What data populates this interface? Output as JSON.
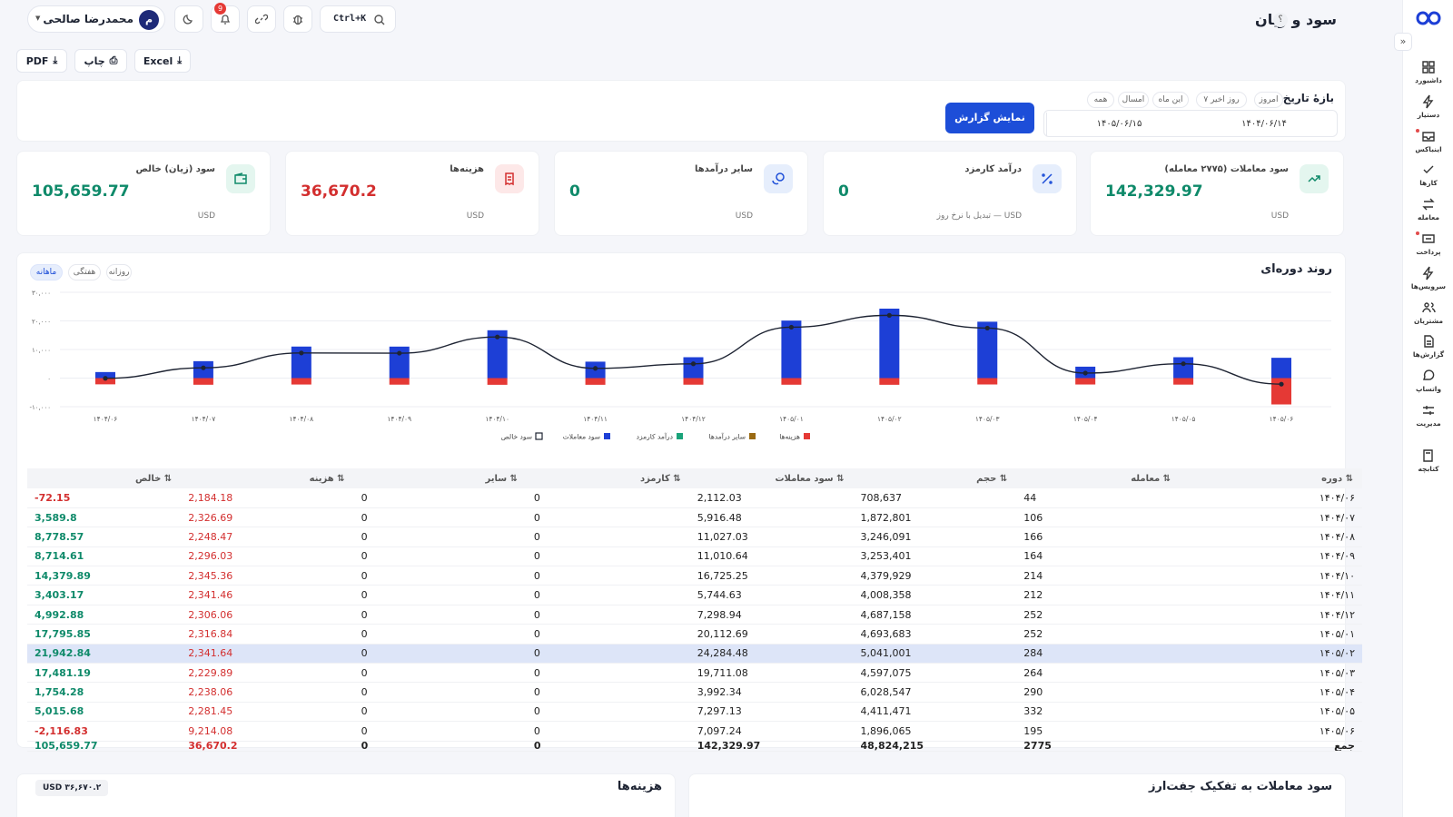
{
  "header": {
    "title": "سود و زیان",
    "help": "؟",
    "search_shortcut": "Ctrl+K",
    "notifications": "9",
    "user_initial": "م",
    "user_name": "محمدرضا صالحی"
  },
  "export": {
    "pdf": "PDF",
    "print": "چاپ",
    "excel": "Excel"
  },
  "filter": {
    "title": "بازهٔ تاریخ",
    "chips": [
      "امروز",
      "۷ روز اخیر",
      "این ماه",
      "امسال",
      "همه"
    ],
    "from": "۱۴۰۴/۰۶/۱۴",
    "to": "۱۴۰۵/۰۶/۱۵",
    "show_button": "نمایش گزارش"
  },
  "kpis": [
    {
      "title": "سود معاملات (۲۷۷۵ معامله)",
      "value": "142,329.97",
      "unit": "USD",
      "color": "#0f8a6a",
      "icon": "trend-icon"
    },
    {
      "title": "درآمد کارمزد",
      "value": "0",
      "unit": "USD — تبدیل با نرخ روز",
      "color": "#0f8a6a",
      "icon": "percent-icon"
    },
    {
      "title": "سایر درآمدها",
      "value": "0",
      "unit": "USD",
      "color": "#0f8a6a",
      "icon": "coins-icon"
    },
    {
      "title": "هزینه‌ها",
      "value": "36,670.2",
      "unit": "USD",
      "color": "#d32f2f",
      "icon": "receipt-icon"
    },
    {
      "title": "سود (زیان) خالص",
      "value": "105,659.77",
      "unit": "USD",
      "color": "#0f8a6a",
      "icon": "wallet-icon"
    }
  ],
  "trend": {
    "title": "روند دوره‌ای",
    "tabs": [
      "ماهانه",
      "هفتگی",
      "روزانه"
    ],
    "active_tab": "ماهانه"
  },
  "chart_data": {
    "type": "bar",
    "categories": [
      "۱۴۰۴/۰۶",
      "۱۴۰۴/۰۷",
      "۱۴۰۴/۰۸",
      "۱۴۰۴/۰۹",
      "۱۴۰۴/۱۰",
      "۱۴۰۴/۱۱",
      "۱۴۰۴/۱۲",
      "۱۴۰۵/۰۱",
      "۱۴۰۵/۰۲",
      "۱۴۰۵/۰۳",
      "۱۴۰۵/۰۴",
      "۱۴۰۵/۰۵",
      "۱۴۰۵/۰۶"
    ],
    "y_ticks": [
      "۳۰,۰۰۰",
      "۲۰,۰۰۰",
      "۱۰,۰۰۰",
      "۰",
      "-۱۰,۰۰۰"
    ],
    "ylim": [
      -10000,
      30000
    ],
    "series": [
      {
        "name": "سود معاملات",
        "kind": "bar",
        "color": "#1d3fd6",
        "values": [
          2112.03,
          5916.48,
          11027.03,
          11010.64,
          16725.25,
          5744.63,
          7298.94,
          20112.69,
          24284.48,
          19711.08,
          3992.34,
          7297.13,
          7097.24
        ]
      },
      {
        "name": "درآمد کارمزد",
        "kind": "bar",
        "color": "#1aa37a",
        "values": [
          0,
          0,
          0,
          0,
          0,
          0,
          0,
          0,
          0,
          0,
          0,
          0,
          0
        ]
      },
      {
        "name": "سایر درآمدها",
        "kind": "bar",
        "color": "#9a6a12",
        "values": [
          0,
          0,
          0,
          0,
          0,
          0,
          0,
          0,
          0,
          0,
          0,
          0,
          0
        ]
      },
      {
        "name": "هزینه‌ها",
        "kind": "bar",
        "color": "#e53935",
        "values": [
          -2184.18,
          -2326.69,
          -2248.47,
          -2296.03,
          -2345.36,
          -2341.46,
          -2306.06,
          -2316.84,
          -2341.64,
          -2229.89,
          -2238.06,
          -2281.45,
          -9214.08
        ]
      },
      {
        "name": "سود خالص",
        "kind": "line",
        "color": "#1e2433",
        "values": [
          -72.15,
          3589.8,
          8778.57,
          8714.61,
          14379.89,
          3403.17,
          4992.88,
          17795.85,
          21942.84,
          17481.19,
          1754.28,
          5015.68,
          -2116.83
        ]
      }
    ],
    "legend": "bottom-center",
    "grid": true
  },
  "table": {
    "headers": [
      "دوره ⇅",
      "معامله ⇅",
      "حجم ⇅",
      "سود معاملات ⇅",
      "کارمزد ⇅",
      "سایر ⇅",
      "هزینه ⇅",
      "خالص ⇅"
    ],
    "rows": [
      [
        "۱۴۰۴/۰۶",
        "44",
        "708,637",
        "2,112.03",
        "0",
        "0",
        "2,184.18",
        "-72.15"
      ],
      [
        "۱۴۰۴/۰۷",
        "106",
        "1,872,801",
        "5,916.48",
        "0",
        "0",
        "2,326.69",
        "3,589.8"
      ],
      [
        "۱۴۰۴/۰۸",
        "166",
        "3,246,091",
        "11,027.03",
        "0",
        "0",
        "2,248.47",
        "8,778.57"
      ],
      [
        "۱۴۰۴/۰۹",
        "164",
        "3,253,401",
        "11,010.64",
        "0",
        "0",
        "2,296.03",
        "8,714.61"
      ],
      [
        "۱۴۰۴/۱۰",
        "214",
        "4,379,929",
        "16,725.25",
        "0",
        "0",
        "2,345.36",
        "14,379.89"
      ],
      [
        "۱۴۰۴/۱۱",
        "212",
        "4,008,358",
        "5,744.63",
        "0",
        "0",
        "2,341.46",
        "3,403.17"
      ],
      [
        "۱۴۰۴/۱۲",
        "252",
        "4,687,158",
        "7,298.94",
        "0",
        "0",
        "2,306.06",
        "4,992.88"
      ],
      [
        "۱۴۰۵/۰۱",
        "252",
        "4,693,683",
        "20,112.69",
        "0",
        "0",
        "2,316.84",
        "17,795.85"
      ],
      [
        "۱۴۰۵/۰۲",
        "284",
        "5,041,001",
        "24,284.48",
        "0",
        "0",
        "2,341.64",
        "21,942.84"
      ],
      [
        "۱۴۰۵/۰۳",
        "264",
        "4,597,075",
        "19,711.08",
        "0",
        "0",
        "2,229.89",
        "17,481.19"
      ],
      [
        "۱۴۰۵/۰۴",
        "290",
        "6,028,547",
        "3,992.34",
        "0",
        "0",
        "2,238.06",
        "1,754.28"
      ],
      [
        "۱۴۰۵/۰۵",
        "332",
        "4,411,471",
        "7,297.13",
        "0",
        "0",
        "2,281.45",
        "5,015.68"
      ],
      [
        "۱۴۰۵/۰۶",
        "195",
        "1,896,065",
        "7,097.24",
        "0",
        "0",
        "9,214.08",
        "-2,116.83"
      ]
    ],
    "total": [
      "جمع",
      "2775",
      "48,824,215",
      "142,329.97",
      "0",
      "0",
      "36,670.2",
      "105,659.77"
    ],
    "highlight_row": 8
  },
  "bottom": {
    "pairs_title": "سود معاملات به تفکیک جفت‌ارز",
    "costs_title": "هزینه‌ها",
    "costs_amount": "USD ۳۶,۶۷۰.۲"
  },
  "sidebar": {
    "items": [
      {
        "label": "داشبورد",
        "icon": "grid-icon",
        "dot": false
      },
      {
        "label": "دستیار",
        "icon": "bolt-icon",
        "dot": false
      },
      {
        "label": "اینباکس",
        "icon": "inbox-icon",
        "dot": true
      },
      {
        "label": "کارها",
        "icon": "check-icon",
        "dot": false
      },
      {
        "label": "معامله",
        "icon": "swap-icon",
        "dot": false
      },
      {
        "label": "پرداخت",
        "icon": "card-icon",
        "dot": true
      },
      {
        "label": "سرویس‌ها",
        "icon": "bolt-icon",
        "dot": false
      },
      {
        "label": "مشتریان",
        "icon": "users-icon",
        "dot": false
      },
      {
        "label": "گزارش‌ها",
        "icon": "report-icon",
        "dot": false
      },
      {
        "label": "واتساپ",
        "icon": "chat-icon",
        "dot": false
      },
      {
        "label": "مدیریت",
        "icon": "sliders-icon",
        "dot": false
      },
      {
        "label": "کتابچه",
        "icon": "book-icon",
        "dot": false
      }
    ]
  }
}
